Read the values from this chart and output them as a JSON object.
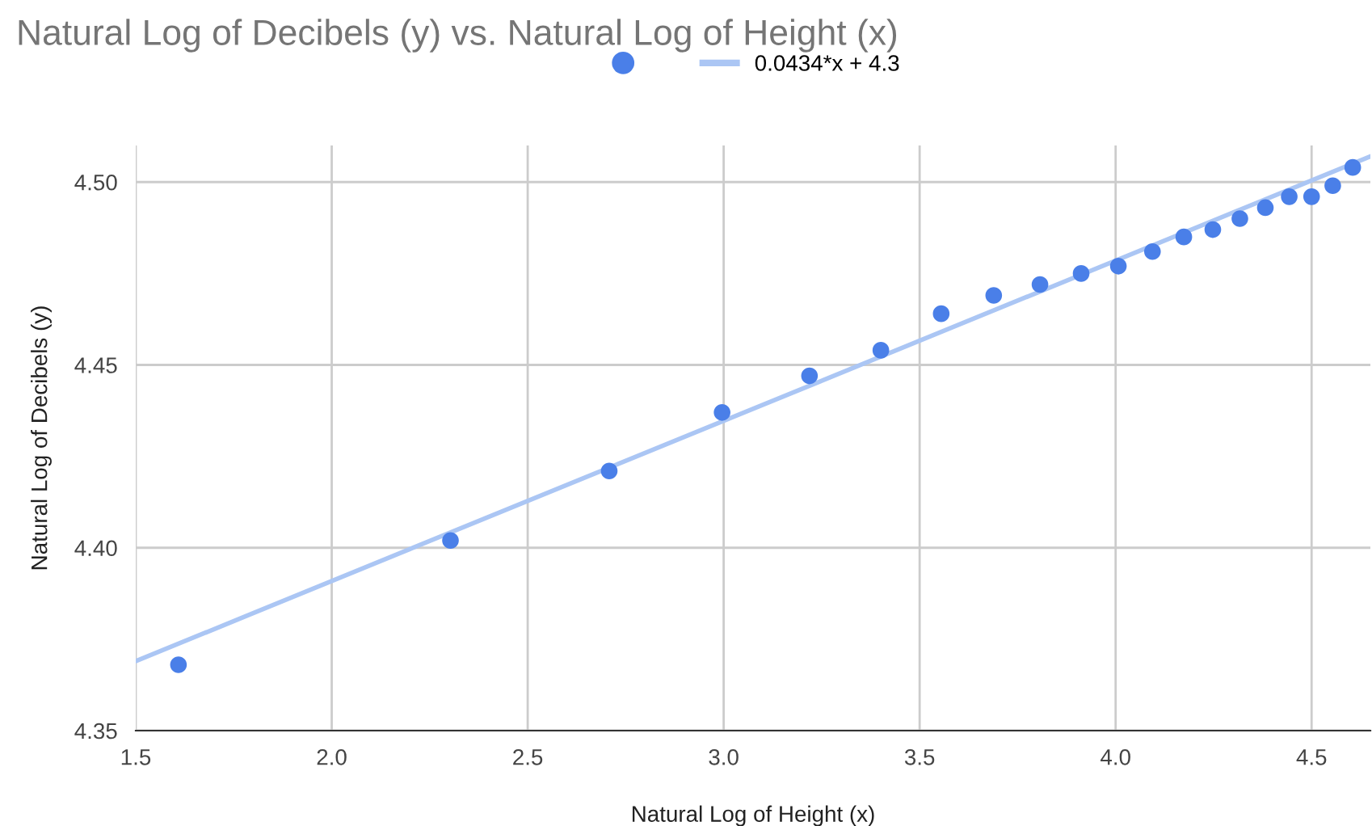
{
  "chart_data": {
    "type": "scatter",
    "title": "Natural Log of Decibels (y) vs. Natural Log of Height (x)",
    "xlabel": "Natural Log of Height (x)",
    "ylabel": "Natural Log of Decibels (y)",
    "x": [
      1.609,
      2.303,
      2.708,
      2.996,
      3.219,
      3.401,
      3.555,
      3.689,
      3.807,
      3.912,
      4.007,
      4.094,
      4.174,
      4.248,
      4.317,
      4.382,
      4.443,
      4.5,
      4.554,
      4.605
    ],
    "series": [
      {
        "color": "#4a7fe8",
        "marker": "circle",
        "values": [
          4.368,
          4.402,
          4.421,
          4.437,
          4.447,
          4.454,
          4.464,
          4.469,
          4.472,
          4.475,
          4.477,
          4.481,
          4.485,
          4.487,
          4.49,
          4.493,
          4.496,
          4.496,
          4.499,
          4.504
        ]
      },
      {
        "type": "line",
        "name": "0.0434*x + 4.3",
        "color": "#abc6f4",
        "x": [
          1.5,
          4.65
        ],
        "values": [
          4.369,
          4.507
        ]
      }
    ],
    "xlim": [
      1.5,
      4.65
    ],
    "ylim": [
      4.35,
      4.51
    ],
    "xticks": [
      {
        "value": 1.5,
        "label": "1.5"
      },
      {
        "value": 2.0,
        "label": "2.0"
      },
      {
        "value": 2.5,
        "label": "2.5"
      },
      {
        "value": 3.0,
        "label": "3.0"
      },
      {
        "value": 3.5,
        "label": "3.5"
      },
      {
        "value": 4.0,
        "label": "4.0"
      },
      {
        "value": 4.5,
        "label": "4.5"
      }
    ],
    "yticks": [
      {
        "value": 4.35,
        "label": "4.35"
      },
      {
        "value": 4.4,
        "label": "4.40"
      },
      {
        "value": 4.45,
        "label": "4.45"
      },
      {
        "value": 4.5,
        "label": "4.50"
      }
    ],
    "grid": true,
    "legend": "top"
  }
}
